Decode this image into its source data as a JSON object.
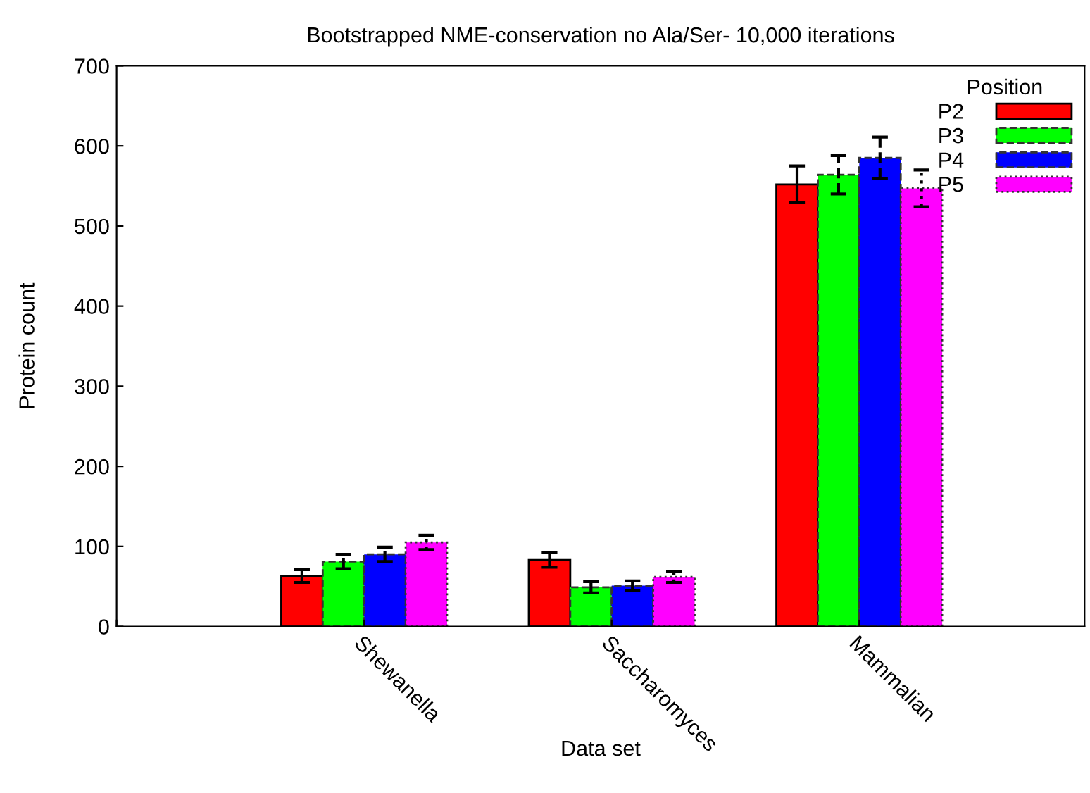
{
  "chart_data": {
    "type": "bar",
    "title": "Bootstrapped NME-conservation no Ala/Ser- 10,000 iterations",
    "xlabel": "Data set",
    "ylabel": "Protein count",
    "legend_title": "Position",
    "legend": "top right",
    "grid": false,
    "categories": [
      null,
      "Shewanella",
      "Saccharomyces",
      "Mammalian"
    ],
    "ylim": [
      0,
      700
    ],
    "yticks": [
      0,
      100,
      200,
      300,
      400,
      500,
      600,
      700
    ],
    "series": [
      {
        "name": "P2",
        "color": "#ff0000",
        "line_style": "solid",
        "values": [
          null,
          63,
          83,
          552
        ],
        "errors": [
          null,
          8,
          9,
          23
        ]
      },
      {
        "name": "P3",
        "color": "#00ff00",
        "line_style": "dashed",
        "values": [
          null,
          81,
          49,
          564
        ],
        "errors": [
          null,
          9,
          7,
          24
        ]
      },
      {
        "name": "P4",
        "color": "#0000ff",
        "line_style": "dashed",
        "values": [
          null,
          90,
          51,
          585
        ],
        "errors": [
          null,
          9,
          6,
          26
        ]
      },
      {
        "name": "P5",
        "color": "#ff00ff",
        "line_style": "dotted",
        "values": [
          null,
          105,
          62,
          547
        ],
        "errors": [
          null,
          9,
          7,
          23
        ]
      }
    ]
  }
}
